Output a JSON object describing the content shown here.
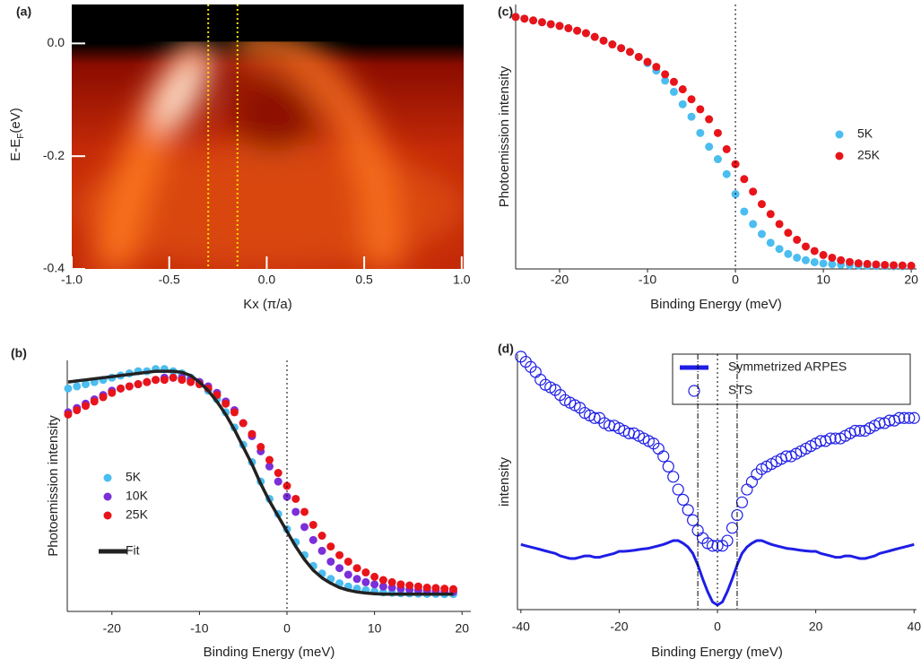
{
  "chart_data": [
    {
      "type": "heatmap",
      "panel_label": "(a)",
      "xlabel": "Kx (π/a)",
      "ylabel_parts": [
        "E-E",
        "F",
        "(eV)"
      ],
      "xlim": [
        -1.0,
        1.01
      ],
      "ylim": [
        -0.4,
        0.069
      ],
      "xticks": [
        {
          "value": -1,
          "label": "-1.0"
        },
        -0.5,
        {
          "value": 0,
          "label": "0.0"
        },
        0.5,
        {
          "value": 1,
          "label": "1.0"
        }
      ],
      "yticks": [
        {
          "value": 0,
          "label": "0.0"
        },
        -0.2,
        -0.4
      ],
      "colormap": [
        "#000000",
        "#8a0c00",
        "#c42a08",
        "#ff7a20",
        "#fff0e0"
      ],
      "vlines": [
        {
          "value": -0.3,
          "style": "dotted",
          "color": "#f5e000"
        },
        {
          "value": -0.15,
          "style": "dotted",
          "color": "#f5e000"
        }
      ]
    },
    {
      "type": "scatter",
      "panel_label": "(b)",
      "xlabel": "Binding Energy (meV)",
      "ylabel": "Photoemission intensity",
      "xlim": [
        -25.1,
        21
      ],
      "ylim": [
        -0.08,
        1.08
      ],
      "xticks": [
        -20,
        -10,
        0,
        10,
        20
      ],
      "vlines": [
        {
          "value": 0,
          "style": "dotted",
          "color": "#000000"
        }
      ],
      "legend": "center-left",
      "x": [
        -25,
        -24,
        -23,
        -22,
        -21,
        -20,
        -19,
        -18,
        -17,
        -16,
        -15,
        -14,
        -13,
        -12,
        -11,
        -10,
        -9,
        -8,
        -7,
        -6,
        -5,
        -4,
        -3,
        -2,
        -1,
        0,
        1,
        2,
        3,
        4,
        5,
        6,
        7,
        8,
        9,
        10,
        11,
        12,
        13,
        14,
        15,
        16,
        17,
        18,
        19
      ],
      "series": [
        {
          "name": "5K",
          "color": "#4bbdf0",
          "style": "dots",
          "values": [
            0.95,
            0.96,
            0.97,
            0.98,
            0.99,
            1.0,
            1.01,
            1.02,
            1.03,
            1.03,
            1.04,
            1.04,
            1.03,
            1.02,
            1.0,
            0.98,
            0.94,
            0.9,
            0.84,
            0.77,
            0.69,
            0.61,
            0.52,
            0.44,
            0.37,
            0.3,
            0.24,
            0.18,
            0.13,
            0.095,
            0.07,
            0.05,
            0.035,
            0.025,
            0.018,
            0.012,
            0.008,
            0.006,
            0.004,
            0.003,
            0.002,
            0.001,
            0.001,
            0,
            0
          ]
        },
        {
          "name": "10K",
          "color": "#7a2fd8",
          "style": "dots",
          "values": [
            0.84,
            0.86,
            0.88,
            0.9,
            0.92,
            0.94,
            0.95,
            0.96,
            0.97,
            0.98,
            0.99,
            1.0,
            1.0,
            1.0,
            0.99,
            0.98,
            0.96,
            0.93,
            0.89,
            0.85,
            0.79,
            0.73,
            0.66,
            0.59,
            0.52,
            0.45,
            0.38,
            0.31,
            0.25,
            0.2,
            0.15,
            0.12,
            0.09,
            0.07,
            0.055,
            0.045,
            0.035,
            0.03,
            0.025,
            0.02,
            0.017,
            0.015,
            0.013,
            0.012,
            0.011
          ]
        },
        {
          "name": "25K",
          "color": "#e8141a",
          "style": "dots",
          "values": [
            0.83,
            0.85,
            0.87,
            0.89,
            0.91,
            0.93,
            0.95,
            0.96,
            0.97,
            0.98,
            0.99,
            0.99,
            1.0,
            0.99,
            0.98,
            0.97,
            0.95,
            0.92,
            0.88,
            0.84,
            0.79,
            0.74,
            0.68,
            0.62,
            0.56,
            0.5,
            0.44,
            0.38,
            0.32,
            0.27,
            0.22,
            0.18,
            0.15,
            0.12,
            0.1,
            0.08,
            0.065,
            0.055,
            0.045,
            0.04,
            0.035,
            0.03,
            0.028,
            0.025,
            0.023
          ]
        },
        {
          "name": "Fit",
          "color": "#222222",
          "style": "line",
          "values": [
            0.98,
            0.985,
            0.99,
            0.995,
            1.0,
            1.005,
            1.01,
            1.015,
            1.02,
            1.025,
            1.03,
            1.03,
            1.03,
            1.025,
            1.01,
            0.98,
            0.94,
            0.89,
            0.83,
            0.76,
            0.68,
            0.6,
            0.51,
            0.43,
            0.36,
            0.29,
            0.22,
            0.16,
            0.11,
            0.075,
            0.05,
            0.03,
            0.018,
            0.01,
            0.005,
            0.002,
            0,
            0,
            0,
            0,
            0,
            0,
            0,
            0,
            0
          ]
        }
      ]
    },
    {
      "type": "scatter",
      "panel_label": "(c)",
      "xlabel": "Binding Energy (meV)",
      "ylabel": "Photoemission intensity",
      "xlim": [
        -25,
        20.6
      ],
      "ylim": [
        -0.01,
        1.05
      ],
      "xticks": [
        -20,
        -10,
        0,
        10,
        20
      ],
      "vlines": [
        {
          "value": 0,
          "style": "dotted",
          "color": "#000000"
        }
      ],
      "legend": "center-right",
      "x": [
        -25,
        -24,
        -23,
        -22,
        -21,
        -20,
        -19,
        -18,
        -17,
        -16,
        -15,
        -14,
        -13,
        -12,
        -11,
        -10,
        -9,
        -8,
        -7,
        -6,
        -5,
        -4,
        -3,
        -2,
        -1,
        0,
        1,
        2,
        3,
        4,
        5,
        6,
        7,
        8,
        9,
        10,
        11,
        12,
        13,
        14,
        15,
        16,
        17,
        18,
        19,
        20
      ],
      "series": [
        {
          "name": "5K",
          "color": "#4bbdf0",
          "style": "dots",
          "values": [
            1.0,
            0.993,
            0.986,
            0.979,
            0.971,
            0.964,
            0.955,
            0.945,
            0.935,
            0.92,
            0.905,
            0.89,
            0.875,
            0.86,
            0.84,
            0.815,
            0.785,
            0.745,
            0.7,
            0.65,
            0.6,
            0.535,
            0.48,
            0.43,
            0.37,
            0.29,
            0.22,
            0.17,
            0.13,
            0.095,
            0.07,
            0.05,
            0.035,
            0.025,
            0.017,
            0.012,
            0.009,
            0.007,
            0.005,
            0.004,
            0.003,
            0.002,
            0.002,
            0.001,
            0.001,
            0.001
          ]
        },
        {
          "name": "25K",
          "color": "#e8141a",
          "style": "dots",
          "values": [
            1.0,
            0.993,
            0.986,
            0.979,
            0.971,
            0.964,
            0.955,
            0.945,
            0.935,
            0.92,
            0.905,
            0.89,
            0.875,
            0.86,
            0.84,
            0.82,
            0.8,
            0.77,
            0.74,
            0.71,
            0.67,
            0.63,
            0.59,
            0.535,
            0.47,
            0.41,
            0.35,
            0.3,
            0.25,
            0.21,
            0.17,
            0.135,
            0.107,
            0.08,
            0.062,
            0.046,
            0.035,
            0.025,
            0.018,
            0.013,
            0.01,
            0.008,
            0.006,
            0.005,
            0.004,
            0.003
          ]
        }
      ]
    },
    {
      "type": "scatter",
      "panel_label": "(d)",
      "xlabel": "Binding Energy (meV)",
      "ylabel": "intensity",
      "xlim": [
        -40.7,
        40.5
      ],
      "ylim": [
        0,
        1
      ],
      "xticks": [
        -40,
        -20,
        0,
        20,
        40
      ],
      "vlines": [
        {
          "value": -4,
          "style": "dashdot",
          "color": "#000000"
        },
        {
          "value": 0,
          "style": "dotted",
          "color": "#000000"
        },
        {
          "value": 4,
          "style": "dashdot",
          "color": "#000000"
        }
      ],
      "legend": "upper-right",
      "x": [
        -40,
        -39,
        -38,
        -37,
        -36,
        -35,
        -34,
        -33,
        -32,
        -31,
        -30,
        -29,
        -28,
        -27,
        -26,
        -25,
        -24,
        -23,
        -22,
        -21,
        -20,
        -19,
        -18,
        -17,
        -16,
        -15,
        -14,
        -13,
        -12,
        -11,
        -10,
        -9,
        -8,
        -7,
        -6,
        -5,
        -4,
        -3,
        -2,
        -1,
        0,
        1,
        2,
        3,
        4,
        5,
        6,
        7,
        8,
        9,
        10,
        11,
        12,
        13,
        14,
        15,
        16,
        17,
        18,
        19,
        20,
        21,
        22,
        23,
        24,
        25,
        26,
        27,
        28,
        29,
        30,
        31,
        32,
        33,
        34,
        35,
        36,
        37,
        38,
        39,
        40
      ],
      "series": [
        {
          "name": "Symmetrized ARPES",
          "color": "#1e1ee6",
          "style": "line",
          "values": [
            0.255,
            0.25,
            0.245,
            0.24,
            0.235,
            0.23,
            0.225,
            0.22,
            0.21,
            0.205,
            0.2,
            0.2,
            0.205,
            0.21,
            0.21,
            0.205,
            0.205,
            0.21,
            0.215,
            0.22,
            0.228,
            0.228,
            0.23,
            0.232,
            0.235,
            0.238,
            0.24,
            0.245,
            0.25,
            0.255,
            0.262,
            0.27,
            0.27,
            0.26,
            0.245,
            0.22,
            0.175,
            0.12,
            0.07,
            0.03,
            0.018,
            0.03,
            0.07,
            0.12,
            0.175,
            0.22,
            0.245,
            0.26,
            0.27,
            0.27,
            0.262,
            0.255,
            0.25,
            0.245,
            0.24,
            0.238,
            0.235,
            0.232,
            0.23,
            0.228,
            0.228,
            0.22,
            0.215,
            0.21,
            0.205,
            0.205,
            0.21,
            0.21,
            0.205,
            0.2,
            0.2,
            0.205,
            0.21,
            0.22,
            0.225,
            0.23,
            0.235,
            0.24,
            0.245,
            0.25,
            0.255
          ]
        },
        {
          "name": "STS",
          "color": "#1e1ee6",
          "style": "open",
          "values": [
            0.99,
            0.97,
            0.95,
            0.93,
            0.9,
            0.88,
            0.87,
            0.86,
            0.84,
            0.82,
            0.81,
            0.8,
            0.79,
            0.77,
            0.76,
            0.75,
            0.75,
            0.73,
            0.72,
            0.72,
            0.71,
            0.7,
            0.69,
            0.69,
            0.68,
            0.67,
            0.66,
            0.65,
            0.63,
            0.6,
            0.56,
            0.52,
            0.47,
            0.43,
            0.39,
            0.35,
            0.31,
            0.28,
            0.26,
            0.25,
            0.25,
            0.25,
            0.27,
            0.32,
            0.37,
            0.42,
            0.47,
            0.5,
            0.53,
            0.55,
            0.56,
            0.57,
            0.58,
            0.59,
            0.6,
            0.6,
            0.61,
            0.62,
            0.63,
            0.64,
            0.65,
            0.66,
            0.66,
            0.67,
            0.67,
            0.67,
            0.68,
            0.69,
            0.7,
            0.7,
            0.7,
            0.71,
            0.72,
            0.73,
            0.73,
            0.74,
            0.74,
            0.75,
            0.75,
            0.75,
            0.75
          ]
        }
      ]
    }
  ]
}
